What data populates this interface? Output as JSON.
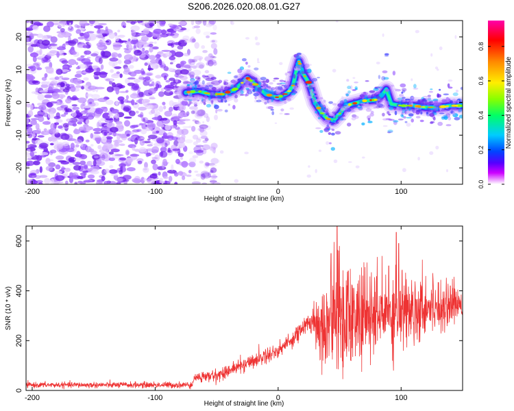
{
  "title": "S206.2026.020.08.01.G27",
  "chart_data": [
    {
      "type": "heatmap",
      "xlabel": "Height of straight line (km)",
      "ylabel": "Frequency (Hz)",
      "xlim": [
        -205,
        150
      ],
      "ylim": [
        -25,
        25
      ],
      "xticks": [
        -200,
        -100,
        0,
        100
      ],
      "yticks": [
        -20,
        -10,
        0,
        10,
        20
      ],
      "colorbar": {
        "label": "Normalized spectral amplitude",
        "range": [
          0,
          0.95
        ],
        "ticks": [
          0.0,
          0.2,
          0.4,
          0.6,
          0.8
        ],
        "colors": [
          "#ffffff",
          "#cc00ff",
          "#5500ff",
          "#0044ff",
          "#00ccff",
          "#00ff66",
          "#88ff00",
          "#ffee00",
          "#ff8800",
          "#ff0000",
          "#ff00aa"
        ]
      },
      "noise_region_x": [
        -205,
        -75
      ],
      "ridge": {
        "x": [
          -75,
          -65,
          -55,
          -45,
          -35,
          -25,
          -20,
          -10,
          0,
          8,
          12,
          15,
          17,
          20,
          25,
          30,
          35,
          40,
          45,
          50,
          55,
          60,
          70,
          80,
          85,
          88,
          92,
          100,
          110,
          120,
          130,
          140,
          150
        ],
        "y": [
          3,
          3.5,
          2.5,
          2.5,
          4,
          7.5,
          6,
          2.5,
          1.5,
          3,
          5,
          10,
          12.5,
          9,
          6,
          0,
          -3,
          -5,
          -5.5,
          -3.5,
          -1,
          -0.5,
          0.5,
          0.8,
          2.5,
          4,
          -0.5,
          -1,
          -1,
          -1.5,
          -1.5,
          -1,
          -1
        ]
      }
    },
    {
      "type": "line",
      "xlabel": "Height of straight line (km)",
      "ylabel": "SNR (10 * v/v)",
      "xlim": [
        -205,
        150
      ],
      "ylim": [
        0,
        660
      ],
      "xticks": [
        -200,
        -100,
        0,
        100
      ],
      "yticks": [
        0,
        200,
        400,
        600
      ],
      "color": "#ee3333",
      "envelope": {
        "x": [
          -205,
          -70,
          -68,
          -50,
          -30,
          -10,
          0,
          10,
          20,
          30,
          35,
          40,
          50,
          60,
          80,
          100,
          120,
          150
        ],
        "y": [
          22,
          22,
          50,
          60,
          100,
          140,
          160,
          200,
          250,
          290,
          250,
          280,
          300,
          290,
          300,
          320,
          340,
          350
        ]
      },
      "noise_amplitude": {
        "x": [
          -205,
          -70,
          -68,
          0,
          25,
          35,
          50,
          60,
          80,
          100,
          150
        ],
        "y": [
          10,
          12,
          20,
          30,
          35,
          150,
          220,
          190,
          160,
          150,
          60
        ]
      },
      "peaks": [
        {
          "x": 48,
          "y": 660
        },
        {
          "x": 43,
          "y": 550
        },
        {
          "x": 96,
          "y": 635
        },
        {
          "x": 98,
          "y": 590
        },
        {
          "x": 57,
          "y": 480
        },
        {
          "x": 90,
          "y": 500
        },
        {
          "x": 140,
          "y": 420
        }
      ]
    }
  ]
}
